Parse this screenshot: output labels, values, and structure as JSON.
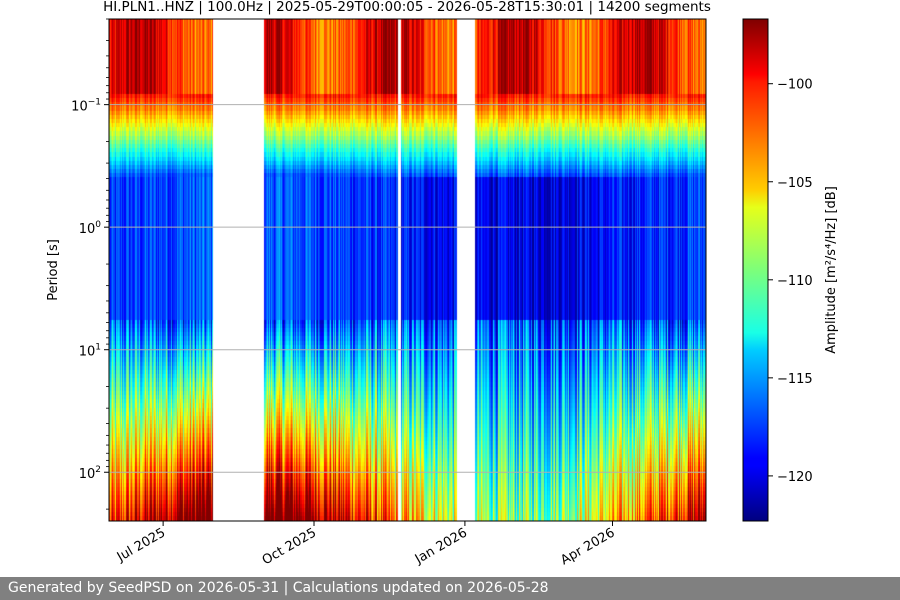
{
  "chart_data": {
    "type": "heatmap",
    "title": "HI.PLN1..HNZ | 100.0Hz | 2025-05-29T00:00:05 - 2026-05-28T15:30:01 | 14200 segments",
    "ylabel": "Period [s]",
    "colorbar_label": "Amplitude [m²/s⁴/Hz] [dB]",
    "y_scale": "log",
    "y_inverted": true,
    "x_range": [
      "2025-05-29",
      "2026-05-28"
    ],
    "y_range": [
      0.02,
      250
    ],
    "x_ticks": [
      {
        "date": "2025-07-01",
        "label": "Jul 2025"
      },
      {
        "date": "2025-10-01",
        "label": "Oct 2025"
      },
      {
        "date": "2026-01-01",
        "label": "Jan 2026"
      },
      {
        "date": "2026-04-01",
        "label": "Apr 2026"
      }
    ],
    "y_ticks": [
      {
        "value": 0.1,
        "base": "10",
        "exp": "−1"
      },
      {
        "value": 1,
        "base": "10",
        "exp": "0"
      },
      {
        "value": 10,
        "base": "10",
        "exp": "1"
      },
      {
        "value": 100,
        "base": "10",
        "exp": "2"
      }
    ],
    "colorbar": {
      "min": -122.3,
      "max": -96.7,
      "colormap": "jet",
      "ticks": [
        -100,
        -105,
        -110,
        -115,
        -120
      ],
      "tick_labels": [
        "−100",
        "−105",
        "−110",
        "−115",
        "−120"
      ]
    },
    "data_gaps": [
      {
        "start": "2025-07-31",
        "end": "2025-08-31"
      },
      {
        "start": "2025-11-21",
        "end": "2025-11-23"
      },
      {
        "start": "2025-12-27",
        "end": "2026-01-07"
      }
    ],
    "grid": true
  },
  "footer": {
    "text": "Generated by SeedPSD on 2026-05-31 | Calculations updated on 2026-05-28"
  }
}
